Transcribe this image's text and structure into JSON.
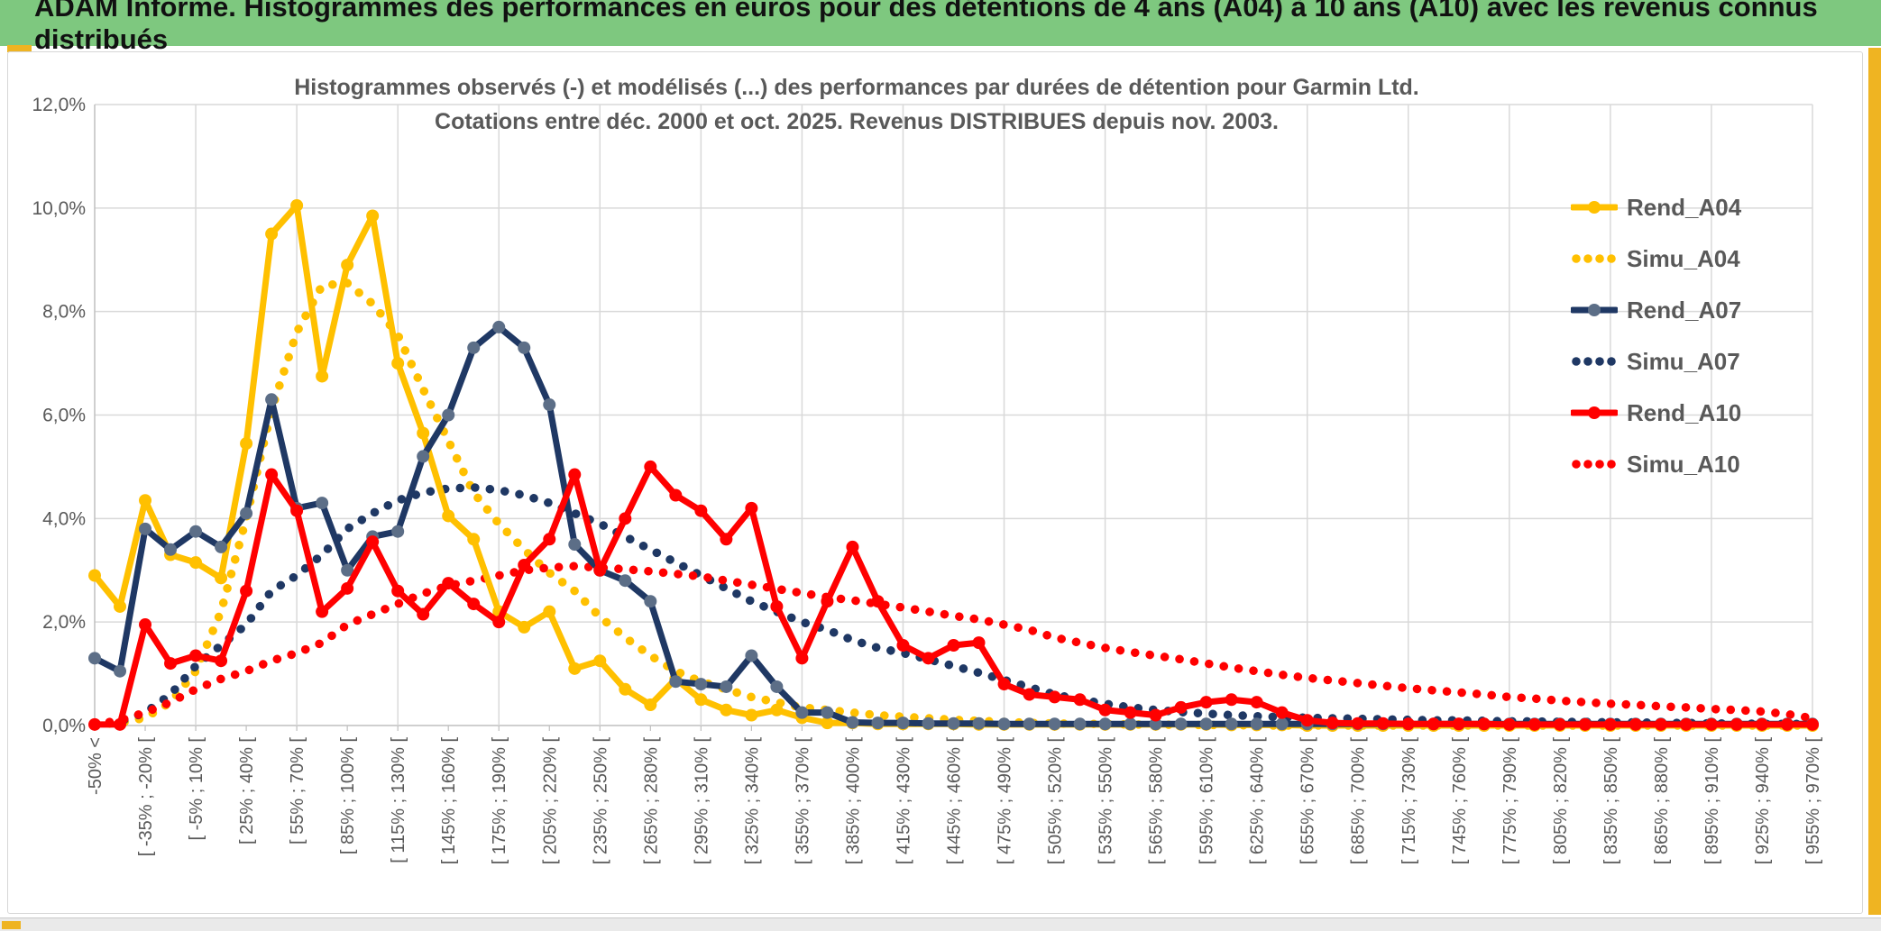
{
  "header": {
    "title": "ADAM Informe. Histogrammes des performances en euros pour des détentions de 4 ans (A04) à 10 ans (A10) avec les revenus connus distribués",
    "bg_color": "#7EC87F",
    "accent_gold": "#EFB422"
  },
  "chart": {
    "title_line1": "Histogrammes observés (-) et modélisés (...) des performances par durées de détention pour Garmin Ltd.",
    "title_line2": "Cotations entre déc. 2000 et oct. 2025. Revenus DISTRIBUES depuis nov. 2003.",
    "text_color": "#595959",
    "grid_color": "#D9D9D9",
    "axis_color": "#BFBFBF"
  },
  "chart_data": {
    "type": "line",
    "title": "Histogrammes observés (-) et modélisés (...) des performances par durées de détention pour Garmin Ltd.",
    "subtitle": "Cotations entre déc. 2000 et oct. 2025. Revenus DISTRIBUES depuis nov. 2003.",
    "ylim": [
      0,
      12
    ],
    "grid": true,
    "legend_position": "right",
    "y_tick_labels": [
      "12,0%",
      "10,0%",
      "8,0%",
      "6,0%",
      "4,0%",
      "2,0%",
      "0,0%"
    ],
    "x_note": "69 bins of 15% width; a tick label is shown every second bin",
    "categories": [
      "-50% <",
      "[ -35% ; -20% [",
      "[ -5% ; 10% [",
      "[ 25% ; 40% [",
      "[ 55% ; 70% [",
      "[ 85% ; 100% [",
      "[ 115% ; 130% [",
      "[ 145% ; 160% [",
      "[ 175% ; 190% [",
      "[ 205% ; 220% [",
      "[ 235% ; 250% [",
      "[ 265% ; 280% [",
      "[ 295% ; 310% [",
      "[ 325% ; 340% [",
      "[ 355% ; 370% [",
      "[ 385% ; 400% [",
      "[ 415% ; 430% [",
      "[ 445% ; 460% [",
      "[ 475% ; 490% [",
      "[ 505% ; 520% [",
      "[ 535% ; 550% [",
      "[ 565% ; 580% [",
      "[ 595% ; 610% [",
      "[ 625% ; 640% [",
      "[ 655% ; 670% [",
      "[ 685% ; 700% [",
      "[ 715% ; 730% [",
      "[ 745% ; 760% [",
      "[ 775% ; 790% [",
      "[ 805% ; 820% [",
      "[ 835% ; 850% [",
      "[ 865% ; 880% [",
      "[ 895% ; 910% [",
      "[ 925% ; 940% [",
      "[ 955% ; 970% ["
    ],
    "series": [
      {
        "name": "Simu_A04",
        "style": "dotted",
        "color": "#FFC000",
        "values": [
          0.02,
          0.05,
          0.15,
          0.45,
          1.05,
          2.2,
          4.0,
          6.1,
          7.6,
          8.5,
          8.55,
          8.15,
          7.55,
          6.5,
          5.5,
          4.5,
          3.9,
          3.4,
          2.95,
          2.6,
          2.1,
          1.7,
          1.35,
          1.05,
          0.85,
          0.7,
          0.55,
          0.45,
          0.35,
          0.3,
          0.25,
          0.2,
          0.17,
          0.14,
          0.11,
          0.09,
          0.07,
          0.05,
          0.04,
          0.03,
          0.03,
          0.02,
          0.02,
          0.01,
          0.01,
          0.01,
          0,
          0,
          0,
          0,
          0,
          0,
          0,
          0,
          0,
          0,
          0,
          0,
          0,
          0,
          0,
          0,
          0,
          0,
          0,
          0,
          0,
          0,
          0
        ]
      },
      {
        "name": "Simu_A07",
        "style": "dotted",
        "color": "#1F3864",
        "values": [
          0.02,
          0.08,
          0.25,
          0.6,
          1.15,
          1.55,
          1.95,
          2.6,
          2.9,
          3.3,
          3.8,
          4.1,
          4.35,
          4.5,
          4.58,
          4.6,
          4.55,
          4.45,
          4.3,
          4.1,
          3.9,
          3.65,
          3.4,
          3.15,
          2.9,
          2.65,
          2.4,
          2.2,
          2.0,
          1.85,
          1.65,
          1.5,
          1.4,
          1.28,
          1.15,
          1.02,
          0.88,
          0.74,
          0.6,
          0.5,
          0.42,
          0.35,
          0.3,
          0.26,
          0.23,
          0.2,
          0.18,
          0.16,
          0.15,
          0.14,
          0.13,
          0.12,
          0.11,
          0.1,
          0.1,
          0.09,
          0.08,
          0.08,
          0.07,
          0.07,
          0.06,
          0.06,
          0.05,
          0.05,
          0.04,
          0.04,
          0.03,
          0.03,
          0.03
        ]
      },
      {
        "name": "Simu_A10",
        "style": "dotted",
        "color": "#FF0000",
        "values": [
          0.02,
          0.1,
          0.25,
          0.45,
          0.7,
          0.9,
          1.05,
          1.25,
          1.4,
          1.6,
          1.95,
          2.15,
          2.35,
          2.55,
          2.7,
          2.8,
          2.9,
          3.0,
          3.05,
          3.08,
          3.05,
          3.02,
          2.98,
          2.93,
          2.88,
          2.8,
          2.72,
          2.64,
          2.56,
          2.48,
          2.42,
          2.35,
          2.28,
          2.2,
          2.12,
          2.05,
          1.95,
          1.85,
          1.7,
          1.6,
          1.5,
          1.42,
          1.35,
          1.28,
          1.2,
          1.12,
          1.05,
          0.98,
          0.92,
          0.87,
          0.82,
          0.77,
          0.72,
          0.68,
          0.64,
          0.6,
          0.55,
          0.52,
          0.48,
          0.45,
          0.42,
          0.4,
          0.37,
          0.35,
          0.32,
          0.3,
          0.27,
          0.22,
          0.14
        ]
      },
      {
        "name": "Rend_A04",
        "style": "solid",
        "color": "#FFC000",
        "marker_color": "#FFC000",
        "values": [
          2.9,
          2.3,
          4.35,
          3.3,
          3.15,
          2.85,
          5.45,
          9.5,
          10.05,
          6.75,
          8.9,
          9.85,
          7.0,
          5.65,
          4.05,
          3.6,
          2.2,
          1.9,
          2.2,
          1.1,
          1.25,
          0.7,
          0.4,
          0.9,
          0.5,
          0.3,
          0.2,
          0.3,
          0.15,
          0.05,
          0.05,
          0.03,
          0.03,
          0.03,
          0.03,
          0.02,
          0.02,
          0.02,
          0.02,
          0.02,
          0.02,
          0.02,
          0.02,
          0.02,
          0.02,
          0.01,
          0.01,
          0.01,
          0,
          0,
          0,
          0,
          0,
          0,
          0,
          0,
          0,
          0,
          0,
          0,
          0,
          0,
          0,
          0,
          0,
          0,
          0,
          0,
          0
        ]
      },
      {
        "name": "Rend_A07",
        "style": "solid",
        "color": "#1F3864",
        "marker_color": "#5C6E87",
        "values": [
          1.3,
          1.05,
          3.8,
          3.4,
          3.75,
          3.45,
          4.1,
          6.3,
          4.2,
          4.3,
          3.0,
          3.65,
          3.75,
          5.2,
          6.0,
          7.3,
          7.7,
          7.3,
          6.2,
          3.5,
          3.0,
          2.8,
          2.4,
          0.85,
          0.8,
          0.75,
          1.35,
          0.75,
          0.25,
          0.25,
          0.06,
          0.05,
          0.05,
          0.04,
          0.04,
          0.04,
          0.03,
          0.03,
          0.03,
          0.03,
          0.03,
          0.03,
          0.03,
          0.03,
          0.03,
          0.03,
          0.03,
          0.03,
          0.03,
          0.03,
          0.03,
          0.03,
          0.03,
          0.03,
          0.03,
          0.03,
          0.03,
          0.03,
          0.03,
          0.03,
          0.03,
          0.03,
          0.03,
          0.03,
          0.03,
          0.03,
          0.03,
          0.03,
          0.03
        ]
      },
      {
        "name": "Rend_A10",
        "style": "solid",
        "color": "#FF0000",
        "marker_color": "#FF0000",
        "values": [
          0.02,
          0.02,
          1.95,
          1.2,
          1.35,
          1.25,
          2.6,
          4.85,
          4.15,
          2.2,
          2.65,
          3.55,
          2.6,
          2.15,
          2.75,
          2.35,
          2.0,
          3.1,
          3.6,
          4.85,
          3.0,
          4.0,
          5.0,
          4.45,
          4.15,
          3.6,
          4.2,
          2.3,
          1.3,
          2.4,
          3.45,
          2.4,
          1.55,
          1.3,
          1.55,
          1.6,
          0.8,
          0.6,
          0.55,
          0.5,
          0.3,
          0.25,
          0.2,
          0.35,
          0.45,
          0.5,
          0.45,
          0.25,
          0.1,
          0.05,
          0.04,
          0.04,
          0.03,
          0.03,
          0.03,
          0.03,
          0.02,
          0.02,
          0.02,
          0.02,
          0.02,
          0.02,
          0.02,
          0.02,
          0.02,
          0.02,
          0.02,
          0.02,
          0.02
        ]
      }
    ]
  },
  "legend": {
    "items": [
      {
        "label": "Rend_A04"
      },
      {
        "label": "Simu_A04"
      },
      {
        "label": "Rend_A07"
      },
      {
        "label": "Simu_A07"
      },
      {
        "label": "Rend_A10"
      },
      {
        "label": "Simu_A10"
      }
    ]
  },
  "scrollbar": {
    "thumb_color": "#EFB422"
  }
}
